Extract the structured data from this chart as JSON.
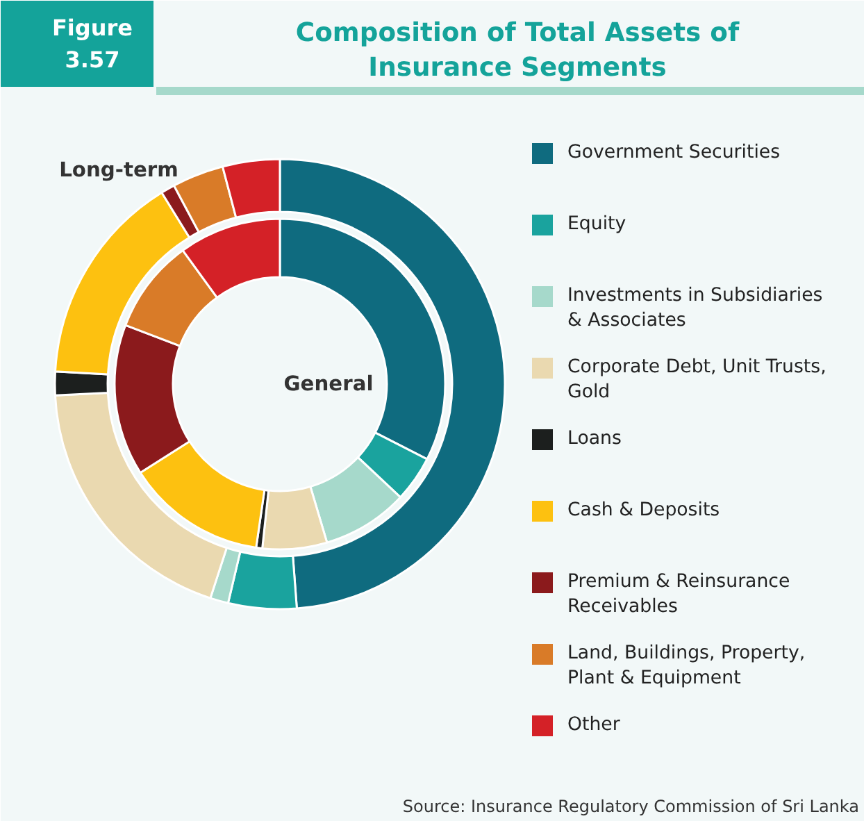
{
  "chart_data": {
    "type": "donut",
    "annotations": [
      "Figure 3.57",
      "Composition of Total Assets of Insurance Segments",
      "Source: Insurance Regulatory Commission of Sri Lanka"
    ],
    "legend": "right",
    "categories": [
      "Government Securities",
      "Equity",
      "Investments in Subsidiaries & Associates",
      "Corporate Debt, Unit Trusts, Gold",
      "Loans",
      "Cash & Deposits",
      "Premium & Reinsurance Receivables",
      "Land, Buildings, Property, Plant & Equipment",
      "Other"
    ],
    "colors": [
      "#0f6b7f",
      "#1aa39e",
      "#a6d9cb",
      "#ead9b0",
      "#1c1f1e",
      "#fdc110",
      "#8b1a1c",
      "#d97b28",
      "#d42127"
    ],
    "series": [
      {
        "name": "Long-term",
        "values": [
          48.8,
          4.9,
          1.3,
          19.2,
          1.7,
          15.3,
          1.0,
          3.7,
          4.1
        ]
      },
      {
        "name": "General",
        "values": [
          32.5,
          4.5,
          8.4,
          6.3,
          0.6,
          13.7,
          14.8,
          9.2,
          10.0
        ]
      }
    ]
  }
}
